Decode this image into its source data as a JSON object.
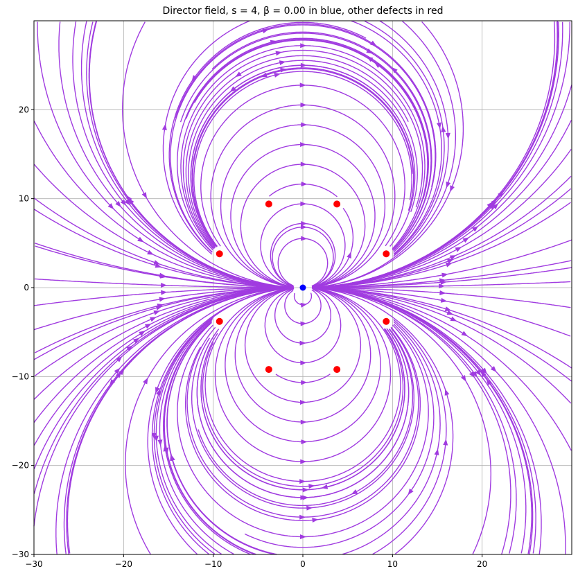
{
  "chart_data": {
    "type": "streamplot",
    "title": "Director field, s = 4, β = 0.00 in blue, other defects in red",
    "xlabel": "",
    "ylabel": "",
    "xlim": [
      -30,
      30
    ],
    "ylim": [
      -30,
      30
    ],
    "x_ticks": [
      -30,
      -20,
      -10,
      0,
      10,
      20
    ],
    "y_ticks": [
      -30,
      -20,
      -10,
      0,
      10,
      20
    ],
    "x_tick_labels": [
      "−30",
      "−20",
      "−10",
      "0",
      "10",
      "20"
    ],
    "y_tick_labels": [
      "−30",
      "−20",
      "−10",
      "0",
      "10",
      "20"
    ],
    "grid": true,
    "stream_color": "#a03be0",
    "main_defect": {
      "x": 0,
      "y": 0,
      "color": "#0000ff"
    },
    "other_defects_color": "#ff0000",
    "other_defects": [
      {
        "x": -3.8,
        "y": 9.4
      },
      {
        "x": 3.8,
        "y": 9.4
      },
      {
        "x": -9.3,
        "y": 3.8
      },
      {
        "x": 9.3,
        "y": 3.8
      },
      {
        "x": -9.3,
        "y": -3.8
      },
      {
        "x": 9.3,
        "y": -3.8
      },
      {
        "x": -3.8,
        "y": -9.2
      },
      {
        "x": 3.8,
        "y": -9.2
      }
    ]
  }
}
